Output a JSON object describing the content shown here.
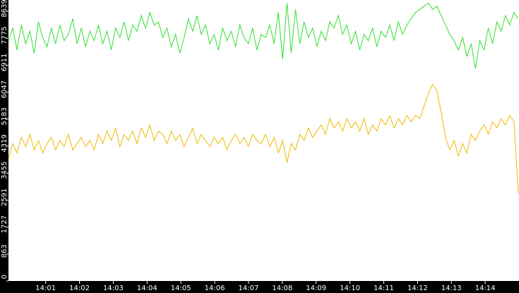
{
  "chart_data": {
    "type": "line",
    "ylim": [
      0,
      9000
    ],
    "yticks": [
      0,
      863,
      1727,
      2591,
      3455,
      4319,
      5183,
      6047,
      6911,
      7775,
      8639
    ],
    "xlim": [
      839.9,
      855
    ],
    "xticks": [
      {
        "value": 841,
        "label": "14:01"
      },
      {
        "value": 842,
        "label": "14:02"
      },
      {
        "value": 843,
        "label": "14:03"
      },
      {
        "value": 844,
        "label": "14:04"
      },
      {
        "value": 845,
        "label": "14:05"
      },
      {
        "value": 846,
        "label": "14:06"
      },
      {
        "value": 847,
        "label": "14:07"
      },
      {
        "value": 848,
        "label": "14:08"
      },
      {
        "value": 849,
        "label": "14:09"
      },
      {
        "value": 850,
        "label": "14:10"
      },
      {
        "value": 851,
        "label": "14:11"
      },
      {
        "value": 852,
        "label": "14:12"
      },
      {
        "value": 853,
        "label": "14:13"
      },
      {
        "value": 854,
        "label": "14:14"
      }
    ],
    "series": [
      {
        "color": "#2ee02e",
        "values": [
          7700,
          8100,
          7400,
          8200,
          7600,
          8000,
          7300,
          8300,
          7800,
          7500,
          8100,
          7600,
          8200,
          7700,
          7900,
          8400,
          7600,
          8100,
          7500,
          8000,
          7700,
          8200,
          7600,
          8000,
          7400,
          8100,
          7800,
          8300,
          7700,
          8200,
          8000,
          8500,
          8100,
          8600,
          8200,
          8300,
          7800,
          8100,
          7500,
          7900,
          7300,
          7800,
          8400,
          8000,
          8500,
          7900,
          8200,
          7600,
          7900,
          7400,
          8100,
          7700,
          8000,
          7500,
          8200,
          7800,
          7600,
          8100,
          7400,
          7900,
          7800,
          8200,
          7600,
          8600,
          7100,
          8900,
          7300,
          8700,
          7600,
          8300,
          7800,
          8100,
          7500,
          8000,
          7700,
          8300,
          8100,
          8500,
          7900,
          8200,
          7600,
          8000,
          7400,
          7900,
          7700,
          8100,
          7500,
          8000,
          7800,
          8200,
          7700,
          8300,
          7900,
          8200,
          8400,
          8600,
          8700,
          8800,
          8900,
          8700,
          8800,
          8500,
          8200,
          7900,
          7700,
          7400,
          7800,
          7200,
          7600,
          6800,
          7700,
          7400,
          8100,
          7600,
          8300,
          8000,
          8500,
          8200,
          8600,
          8400
        ]
      },
      {
        "color": "#f0b800",
        "values": [
          3900,
          4400,
          4100,
          4600,
          4300,
          4700,
          4200,
          4500,
          4100,
          4400,
          4600,
          4200,
          4500,
          4300,
          4700,
          4200,
          4400,
          4600,
          4300,
          4500,
          4200,
          4700,
          4400,
          4800,
          4500,
          4900,
          4300,
          4700,
          4500,
          4800,
          4400,
          4900,
          4600,
          5000,
          4500,
          4800,
          4700,
          4400,
          4800,
          4500,
          4700,
          4300,
          4600,
          4900,
          4400,
          4700,
          4500,
          4300,
          4600,
          4400,
          4600,
          4200,
          4500,
          4700,
          4400,
          4600,
          4300,
          4700,
          4500,
          4400,
          4700,
          4300,
          4600,
          4100,
          4500,
          3800,
          4400,
          4200,
          4700,
          4500,
          4900,
          4600,
          4800,
          5000,
          4700,
          5200,
          4900,
          5100,
          4800,
          5200,
          4900,
          5100,
          4800,
          5200,
          4700,
          5000,
          4800,
          5200,
          5000,
          5300,
          4900,
          5200,
          5000,
          5300,
          5100,
          5300,
          5200,
          5600,
          6000,
          6300,
          6100,
          5400,
          4600,
          4200,
          4500,
          4000,
          4400,
          4100,
          4700,
          4500,
          4800,
          5000,
          4700,
          5100,
          4900,
          5200,
          5000,
          5300,
          5100,
          2800
        ]
      }
    ]
  }
}
